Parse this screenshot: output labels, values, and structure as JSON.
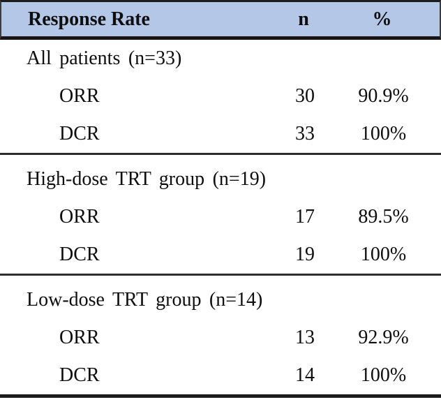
{
  "table": {
    "header": {
      "metric": "Response Rate",
      "n": "n",
      "pct": "%"
    },
    "colors": {
      "header_bg": "#b4c7e7",
      "rule": "#1b1b1b",
      "text": "#0e0e0e"
    },
    "sections": [
      {
        "label": "All patients (n=33)",
        "rows": [
          {
            "metric": "ORR",
            "n": "30",
            "pct": "90.9%"
          },
          {
            "metric": "DCR",
            "n": "33",
            "pct": "100%"
          }
        ]
      },
      {
        "label": "High-dose TRT group (n=19)",
        "rows": [
          {
            "metric": "ORR",
            "n": "17",
            "pct": "89.5%"
          },
          {
            "metric": "DCR",
            "n": "19",
            "pct": "100%"
          }
        ]
      },
      {
        "label": "Low-dose TRT group (n=14)",
        "rows": [
          {
            "metric": "ORR",
            "n": "13",
            "pct": "92.9%"
          },
          {
            "metric": "DCR",
            "n": "14",
            "pct": "100%"
          }
        ]
      }
    ]
  }
}
